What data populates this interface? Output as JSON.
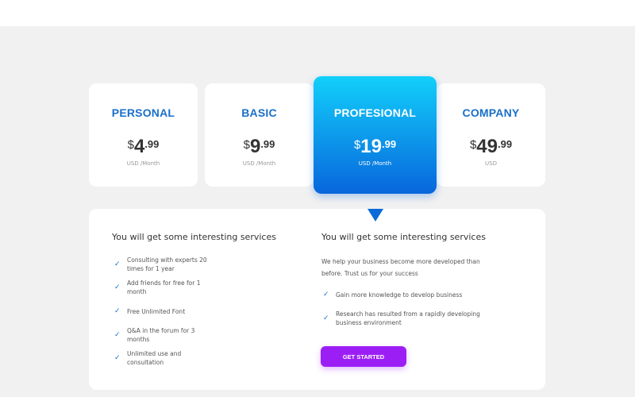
{
  "plans": [
    {
      "name": "PERSONAL",
      "currency": "$",
      "price_int": "4",
      "price_dec": ".99",
      "unit": "USD /Month"
    },
    {
      "name": "BASIC",
      "currency": "$",
      "price_int": "9",
      "price_dec": ".99",
      "unit": "USD /Month"
    },
    {
      "name": "PROFESIONAL",
      "currency": "$",
      "price_int": "19",
      "price_dec": ".99",
      "unit": "USD /Month"
    },
    {
      "name": "COMPANY",
      "currency": "$",
      "price_int": "49",
      "price_dec": ".99",
      "unit": "USD"
    }
  ],
  "selected_plan": "PROFESIONAL",
  "left": {
    "heading": "You will get some interesting services",
    "items": [
      {
        "l1": "Consulting with experts 20",
        "l2": "times for 1 year"
      },
      {
        "l1": "Add friends for free for 1",
        "l2": "month"
      },
      {
        "l1": "Free Unlimited Font",
        "l2": ""
      },
      {
        "l1": "Q&A in the forum for 3",
        "l2": "months"
      },
      {
        "l1": "Unlimited use and",
        "l2": "consultation"
      }
    ]
  },
  "right": {
    "heading": "You will get some interesting services",
    "paragraph": "We help your business become more developed than before. Trust us for your success",
    "items": [
      {
        "l1": "Gain more knowledge to develop business",
        "l2": ""
      },
      {
        "l1": "Research has resulted from a rapidly developing",
        "l2": "business environment"
      }
    ],
    "button": "GET STARTED"
  },
  "colors": {
    "accent": "#1a6fc9",
    "featured_top": "#12d0fa",
    "featured_bottom": "#0866dc",
    "button": "#9b1ff5"
  }
}
